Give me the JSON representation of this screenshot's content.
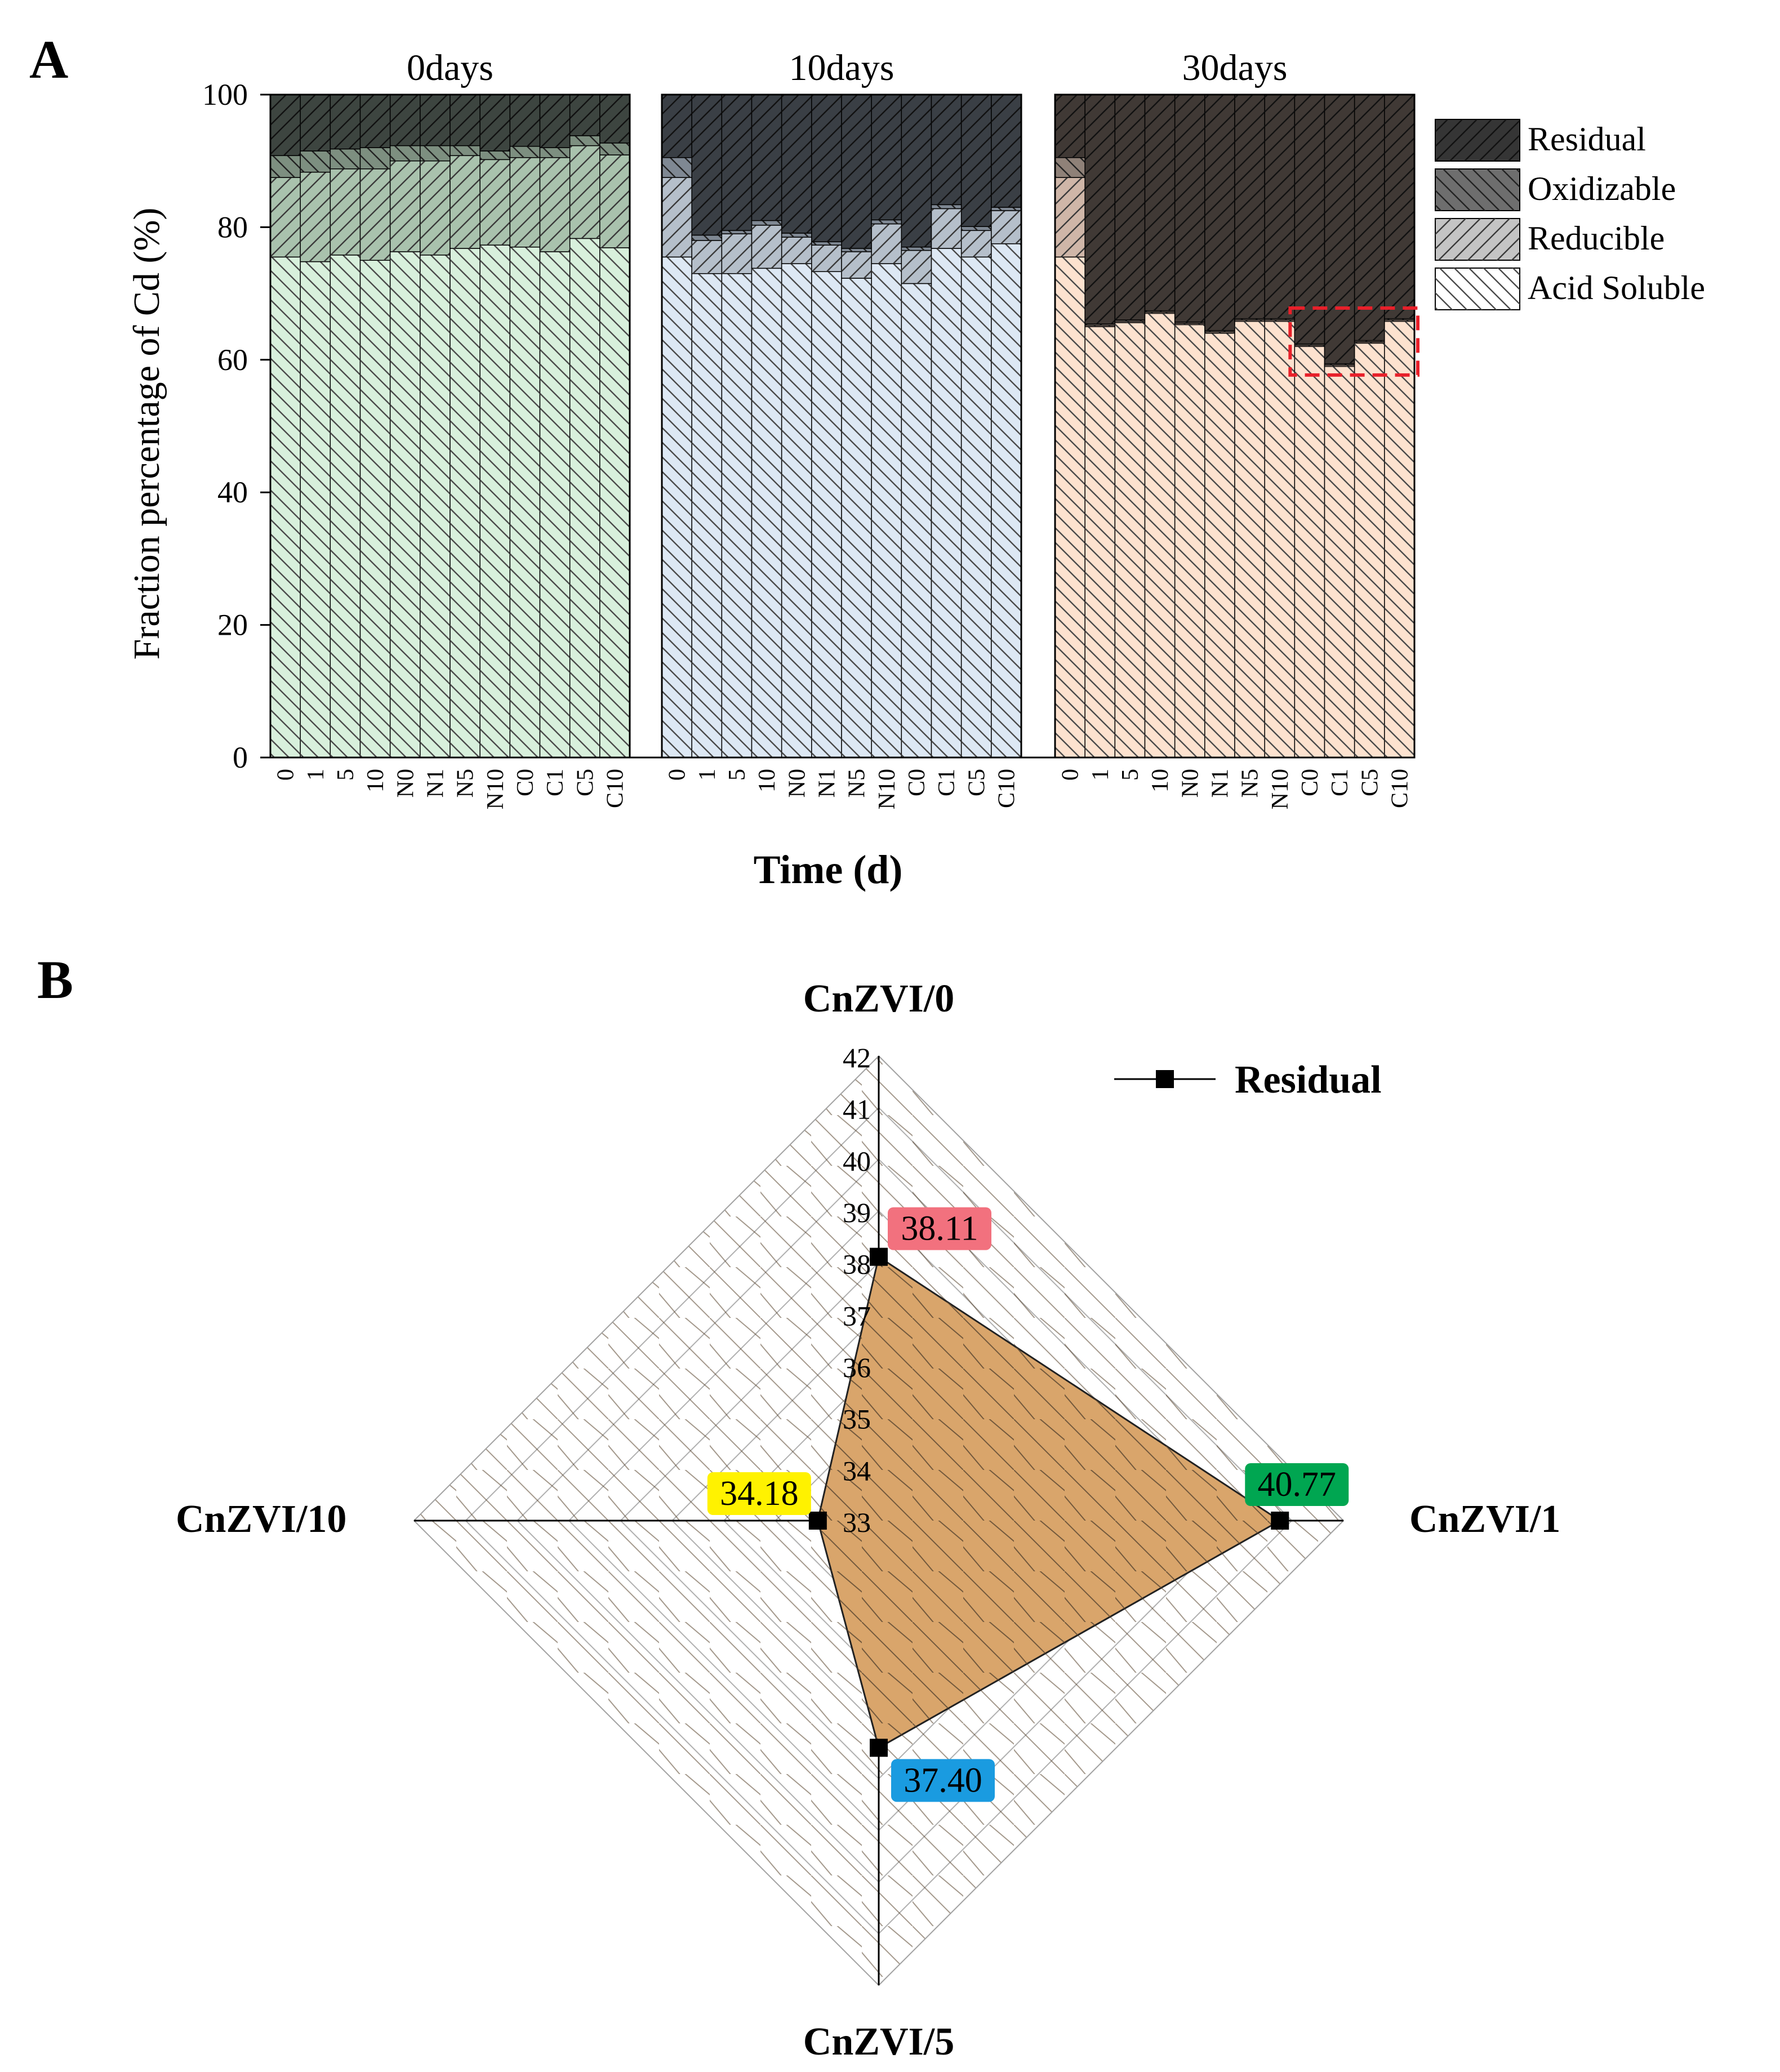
{
  "panel_a_label": "A",
  "panel_b_label": "B",
  "chart_data": [
    {
      "type": "bar",
      "stacked": true,
      "panel": "A",
      "ylabel": "Fraction percentage of Cd (%)",
      "xlabel": "Time (d)",
      "ylim": [
        0,
        100
      ],
      "yticks": [
        0,
        20,
        40,
        60,
        80,
        100
      ],
      "categories": [
        "0",
        "1",
        "5",
        "10",
        "N0",
        "N1",
        "N5",
        "N10",
        "C0",
        "C1",
        "C5",
        "C10"
      ],
      "legend_position": "right",
      "highlight": {
        "group": "30days",
        "categories": [
          "C0",
          "C1",
          "C5",
          "C10"
        ],
        "series": "Acid Soluble",
        "style": "red dashed box"
      },
      "groups": [
        {
          "name": "0days",
          "color": "#d8f0dc",
          "series": {
            "Acid Soluble": [
              75.5,
              74.8,
              75.8,
              75.0,
              76.3,
              75.8,
              76.8,
              77.3,
              77.0,
              76.3,
              78.3,
              76.9
            ],
            "Reducible": [
              12.0,
              13.5,
              13.0,
              13.8,
              13.7,
              14.2,
              14.0,
              12.9,
              13.5,
              14.2,
              14.0,
              14.0
            ],
            "Oxidizable": [
              3.3,
              3.2,
              3.0,
              3.2,
              2.3,
              2.3,
              1.5,
              1.3,
              1.7,
              1.5,
              1.5,
              1.8
            ],
            "Residual": [
              9.2,
              8.5,
              8.2,
              8.0,
              7.7,
              7.7,
              7.7,
              8.5,
              7.8,
              8.0,
              6.2,
              7.3
            ]
          }
        },
        {
          "name": "10days",
          "color": "#dde8f4",
          "series": {
            "Acid Soluble": [
              75.5,
              73.0,
              73.0,
              73.8,
              74.5,
              73.3,
              72.3,
              74.5,
              71.5,
              76.8,
              75.5,
              77.5
            ],
            "Reducible": [
              12.0,
              5.0,
              6.0,
              6.5,
              4.0,
              4.0,
              4.0,
              6.0,
              5.0,
              6.0,
              4.0,
              5.0
            ],
            "Oxidizable": [
              3.0,
              0.8,
              0.5,
              0.7,
              0.6,
              0.5,
              0.5,
              0.6,
              0.5,
              0.6,
              0.6,
              0.5
            ],
            "Residual": [
              9.5,
              21.2,
              20.5,
              19.0,
              20.9,
              22.2,
              23.2,
              18.9,
              23.0,
              16.6,
              19.9,
              17.0
            ]
          }
        },
        {
          "name": "30days",
          "color": "#fde2cf",
          "series": {
            "Acid Soluble": [
              75.5,
              65.0,
              65.6,
              67.0,
              65.3,
              64.0,
              65.8,
              65.8,
              62.0,
              59.0,
              62.5,
              65.8
            ],
            "Reducible": [
              12.0,
              0.2,
              0.2,
              0.2,
              0.2,
              0.2,
              0.2,
              0.2,
              0.2,
              0.2,
              0.2,
              0.2
            ],
            "Oxidizable": [
              3.0,
              0.2,
              0.2,
              0.2,
              0.2,
              0.2,
              0.2,
              0.2,
              0.2,
              0.2,
              0.2,
              0.2
            ],
            "Residual": [
              9.5,
              34.6,
              34.0,
              32.6,
              34.3,
              35.6,
              33.8,
              33.8,
              37.6,
              40.6,
              37.1,
              33.8
            ]
          }
        }
      ],
      "legend": [
        {
          "name": "Residual",
          "color": "#3a3a3a"
        },
        {
          "name": "Oxidizable",
          "color": "#7a7a7a"
        },
        {
          "name": "Reducible",
          "color": "#c4c4c4"
        },
        {
          "name": "Acid Soluble",
          "color": "#ffffff"
        }
      ]
    },
    {
      "type": "radar",
      "panel": "B",
      "axes": [
        "CnZVI/0",
        "CnZVI/1",
        "CnZVI/5",
        "CnZVI/10"
      ],
      "rlim": [
        33,
        42
      ],
      "rticks": [
        33,
        34,
        35,
        36,
        37,
        38,
        39,
        40,
        41,
        42
      ],
      "series": [
        {
          "name": "Residual",
          "values": [
            38.11,
            40.77,
            37.4,
            34.18
          ]
        }
      ],
      "value_labels": [
        "38.11",
        "40.77",
        "37.40",
        "34.18"
      ],
      "value_label_colors": [
        "#f2717e",
        "#00a651",
        "#1a9be0",
        "#fff200"
      ],
      "fill_color": "#d9a56b",
      "legend_position": "top-right"
    }
  ]
}
